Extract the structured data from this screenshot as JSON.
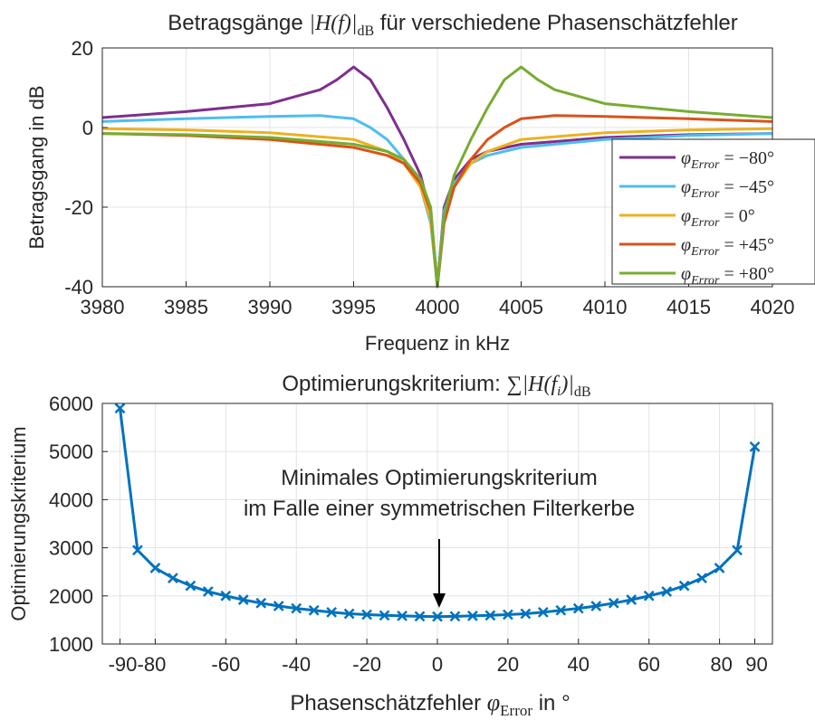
{
  "chart_data": [
    {
      "type": "line",
      "title_prefix": "Betragsgänge ",
      "title_math": "|H(f)|",
      "title_math_sub": "dB",
      "title_suffix": " für verschiedene Phasenschätzfehler",
      "xlabel": "Frequenz in kHz",
      "ylabel": "Betragsgang in dB",
      "xlim": [
        3980,
        4020
      ],
      "ylim": [
        -40,
        20
      ],
      "xticks": [
        3980,
        3985,
        3990,
        3995,
        4000,
        4005,
        4010,
        4015,
        4020
      ],
      "yticks": [
        -40,
        -20,
        0,
        20
      ],
      "grid": true,
      "legend_position": "right",
      "legend": [
        {
          "label": "φ_Error = −80°",
          "prefix": "φ",
          "sub": "Error",
          "rest": " = −80°"
        },
        {
          "label": "φ_Error = −45°",
          "prefix": "φ",
          "sub": "Error",
          "rest": " = −45°"
        },
        {
          "label": "φ_Error = 0°",
          "prefix": "φ",
          "sub": "Error",
          "rest": " = 0°"
        },
        {
          "label": "φ_Error = +45°",
          "prefix": "φ",
          "sub": "Error",
          "rest": " = +45°"
        },
        {
          "label": "φ_Error = +80°",
          "prefix": "φ",
          "sub": "Error",
          "rest": " = +80°"
        }
      ],
      "series": [
        {
          "name": "φ_Error = −80°",
          "color": "#7e2f8e",
          "x": [
            3980,
            3985,
            3990,
            3993,
            3994,
            3995,
            3996,
            3997,
            3998,
            3999,
            3999.6,
            4000,
            4000.4,
            4001,
            4002,
            4003,
            4005,
            4010,
            4015,
            4020
          ],
          "y": [
            2.5,
            4,
            6,
            9.5,
            12,
            15.2,
            12,
            5,
            -3,
            -12,
            -22,
            -40,
            -20,
            -13,
            -8,
            -6,
            -4.2,
            -2.5,
            -1.8,
            -1.5
          ]
        },
        {
          "name": "φ_Error = −45°",
          "color": "#4dbeee",
          "x": [
            3980,
            3985,
            3990,
            3993,
            3995,
            3996,
            3997,
            3998,
            3999,
            3999.6,
            4000,
            4000.4,
            4001,
            4002,
            4003,
            4005,
            4010,
            4015,
            4020
          ],
          "y": [
            1.5,
            2.2,
            2.8,
            3,
            2.2,
            0,
            -3,
            -8,
            -15,
            -24,
            -40,
            -21,
            -14,
            -9,
            -7,
            -5,
            -3,
            -2,
            -1.5
          ]
        },
        {
          "name": "φ_Error = 0°",
          "color": "#edb120",
          "x": [
            3980,
            3985,
            3990,
            3995,
            3997,
            3998,
            3999,
            3999.6,
            4000,
            4000.4,
            4001,
            4002,
            4003,
            4005,
            4010,
            4015,
            4020
          ],
          "y": [
            -0.3,
            -0.6,
            -1.3,
            -3,
            -6,
            -9,
            -15,
            -23,
            -40,
            -23,
            -15,
            -9,
            -6,
            -3,
            -1.3,
            -0.6,
            -0.3
          ]
        },
        {
          "name": "φ_Error = +45°",
          "color": "#d95319",
          "x": [
            3980,
            3985,
            3990,
            3995,
            3997,
            3998,
            3999,
            3999.6,
            4000,
            4000.4,
            4001,
            4002,
            4003,
            4004,
            4005,
            4007,
            4010,
            4015,
            4020
          ],
          "y": [
            -1.5,
            -2,
            -3,
            -5,
            -7,
            -9,
            -14,
            -21,
            -40,
            -24,
            -15,
            -8,
            -3,
            0,
            2.2,
            3,
            2.8,
            2.2,
            1.5
          ]
        },
        {
          "name": "φ_Error = +80°",
          "color": "#77ac30",
          "x": [
            3980,
            3985,
            3990,
            3995,
            3997,
            3998,
            3999,
            3999.6,
            4000,
            4000.4,
            4001,
            4002,
            4003,
            4004,
            4005,
            4006,
            4007,
            4010,
            4015,
            4020
          ],
          "y": [
            -1.5,
            -1.8,
            -2.5,
            -4.2,
            -6,
            -8,
            -13,
            -20,
            -40,
            -22,
            -12,
            -3,
            5,
            12,
            15.2,
            12,
            9.5,
            6,
            4,
            2.5
          ]
        }
      ]
    },
    {
      "type": "line",
      "title_prefix": "Optimierungskriterium: ",
      "title_math": "∑|H(f",
      "title_math_i": "i",
      "title_math_close": ")|",
      "title_math_sub": "dB",
      "xlabel_prefix": "Phasenschätzfehler ",
      "xlabel_math": "φ",
      "xlabel_math_sub": "Error",
      "xlabel_suffix": " in °",
      "ylabel": "Optimierungskriterium",
      "xlim": [
        -95,
        95
      ],
      "ylim": [
        1000,
        6000
      ],
      "xticks": [
        -90,
        -80,
        -60,
        -40,
        -20,
        0,
        20,
        40,
        60,
        80,
        90
      ],
      "xticklabels": [
        "-90",
        "-80",
        "-60",
        "-40",
        "-20",
        "0",
        "20",
        "40",
        "60",
        "80",
        "90"
      ],
      "yticks": [
        1000,
        2000,
        3000,
        4000,
        5000,
        6000
      ],
      "grid": true,
      "annotation": [
        "Minimales Optimierungskriterium",
        "im Falle einer symmetrischen Filterkerbe"
      ],
      "arrow_target": {
        "x": 0,
        "y": 1600
      },
      "series": [
        {
          "color": "#0072bd",
          "marker": "x",
          "x": [
            -90,
            -85,
            -80,
            -75,
            -70,
            -65,
            -60,
            -55,
            -50,
            -45,
            -40,
            -35,
            -30,
            -25,
            -20,
            -15,
            -10,
            -5,
            0,
            5,
            10,
            15,
            20,
            25,
            30,
            35,
            40,
            45,
            50,
            55,
            60,
            65,
            70,
            75,
            80,
            85,
            90
          ],
          "y": [
            5900,
            2950,
            2580,
            2370,
            2210,
            2090,
            2000,
            1920,
            1850,
            1790,
            1740,
            1700,
            1660,
            1630,
            1610,
            1595,
            1585,
            1575,
            1570,
            1575,
            1585,
            1595,
            1610,
            1630,
            1660,
            1700,
            1740,
            1790,
            1850,
            1920,
            2000,
            2090,
            2210,
            2370,
            2580,
            2950,
            5100
          ]
        }
      ]
    }
  ]
}
